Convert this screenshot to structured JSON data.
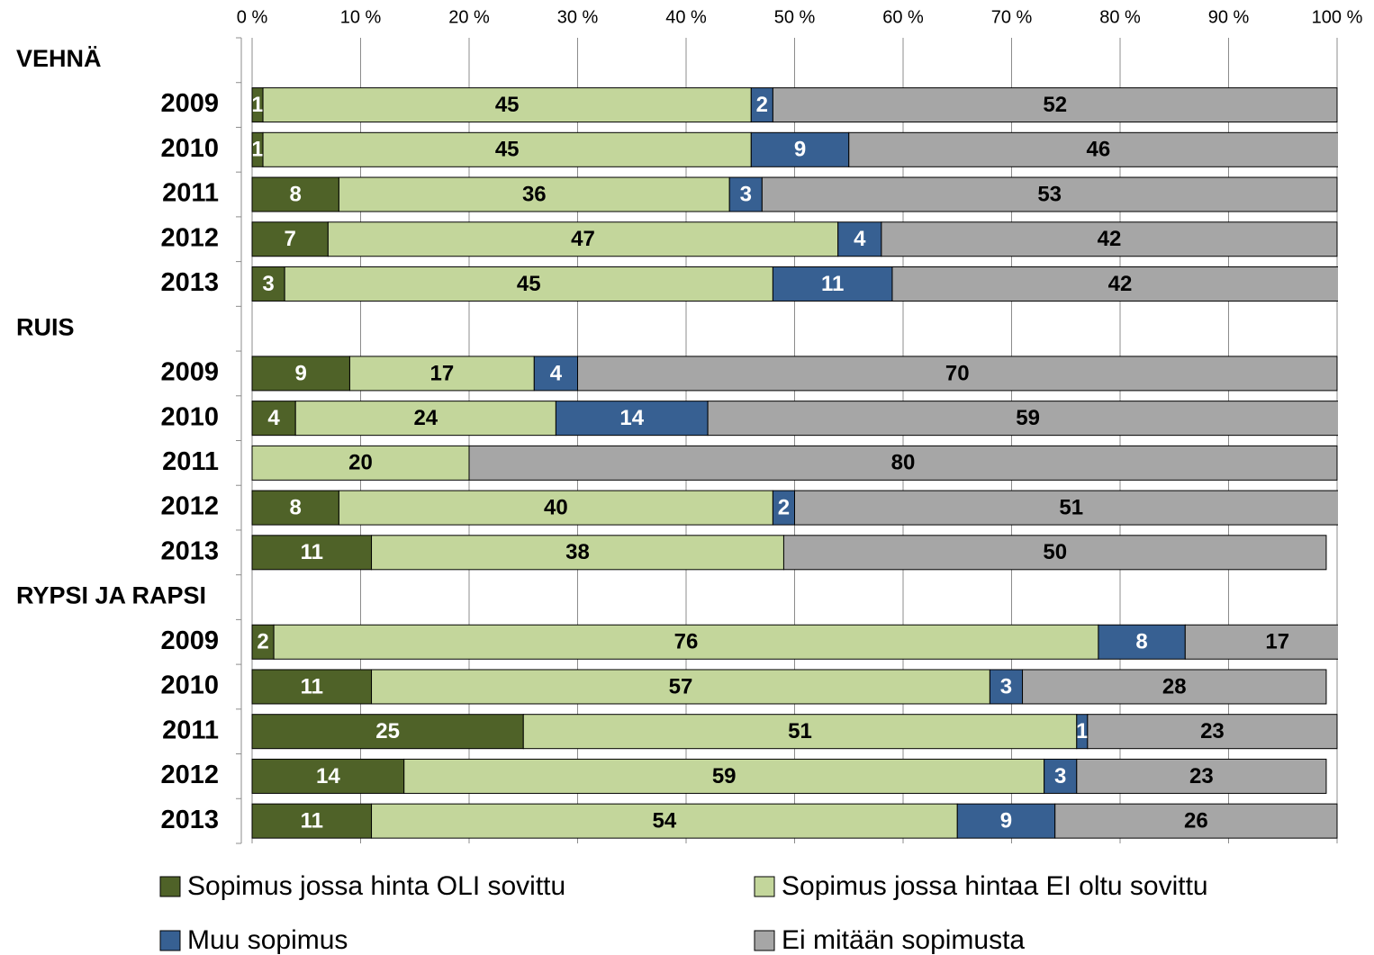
{
  "chart_data": {
    "type": "stacked_barh",
    "categories": [
      "VEHNÄ",
      "2009",
      "2010",
      "2011",
      "2012",
      "2013",
      "RUIS",
      "2009",
      "2010",
      "2011",
      "2012",
      "2013",
      "RYPSI JA RAPSI",
      "2009",
      "2010",
      "2011",
      "2012",
      "2013"
    ],
    "series": [
      {
        "name": "Sopimus jossa hinta OLI sovittu",
        "color": "#4f6228",
        "values": [
          null,
          1,
          1,
          8,
          7,
          3,
          null,
          9,
          4,
          0,
          8,
          11,
          null,
          2,
          11,
          25,
          14,
          11
        ]
      },
      {
        "name": "Sopimus jossa hintaa EI oltu sovittu",
        "color": "#c3d69b",
        "values": [
          null,
          45,
          45,
          36,
          47,
          45,
          null,
          17,
          24,
          20,
          40,
          38,
          null,
          76,
          57,
          51,
          59,
          54
        ]
      },
      {
        "name": "Muu sopimus",
        "color": "#376092",
        "values": [
          null,
          2,
          9,
          3,
          4,
          11,
          null,
          4,
          14,
          0,
          2,
          0,
          null,
          8,
          3,
          1,
          3,
          9
        ]
      },
      {
        "name": "Ei mitään sopimusta",
        "color": "#a6a6a6",
        "values": [
          null,
          52,
          46,
          53,
          42,
          42,
          null,
          70,
          59,
          80,
          51,
          50,
          null,
          17,
          28,
          23,
          23,
          26
        ]
      }
    ],
    "xlim": [
      0,
      100
    ],
    "xticks": [
      {
        "value": 0,
        "label": "0 %"
      },
      {
        "value": 10,
        "label": "10 %"
      },
      {
        "value": 20,
        "label": "20 %"
      },
      {
        "value": 30,
        "label": "30 %"
      },
      {
        "value": 40,
        "label": "40 %"
      },
      {
        "value": 50,
        "label": "50 %"
      },
      {
        "value": 60,
        "label": "60 %"
      },
      {
        "value": 70,
        "label": "70 %"
      },
      {
        "value": 80,
        "label": "80 %"
      },
      {
        "value": 90,
        "label": "90 %"
      },
      {
        "value": 100,
        "label": "100 %"
      }
    ],
    "grid": true,
    "legend": "bottom"
  }
}
